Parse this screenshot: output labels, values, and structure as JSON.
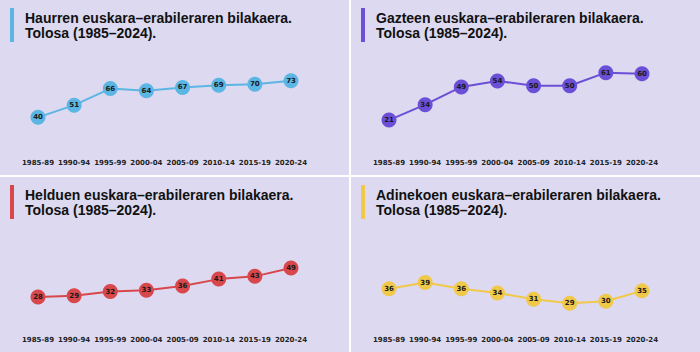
{
  "chart_data": [
    {
      "type": "line",
      "title": "Haurren euskara–erabileraren bilakaera.",
      "subtitle": "Tolosa (1985–2024).",
      "categories": [
        "1985-89",
        "1990-94",
        "1995-99",
        "2000-04",
        "2005-09",
        "2010-14",
        "2015-19",
        "2020-24"
      ],
      "values": [
        40,
        51,
        66,
        64,
        67,
        69,
        70,
        73
      ],
      "color": "#5cb6e4",
      "ylim": [
        15,
        90
      ],
      "grid": false,
      "tick_labels": "x",
      "data_labels": true,
      "marker": "circle"
    },
    {
      "type": "line",
      "title": "Gazteen euskara–erabileraren bilakaera.",
      "subtitle": "Tolosa (1985–2024).",
      "categories": [
        "1985-89",
        "1990-94",
        "1995-99",
        "2000-04",
        "2005-09",
        "2010-14",
        "2015-19",
        "2020-24"
      ],
      "values": [
        21,
        34,
        49,
        54,
        50,
        50,
        61,
        60
      ],
      "color": "#6b4fd6",
      "ylim": [
        0,
        70
      ],
      "grid": false,
      "tick_labels": "x",
      "data_labels": true,
      "marker": "circle"
    },
    {
      "type": "line",
      "title": "Helduen euskara–erabileraren bilakaera.",
      "subtitle": "Tolosa (1985–2024).",
      "categories": [
        "1985-89",
        "1990-94",
        "1995-99",
        "2000-04",
        "2005-09",
        "2010-14",
        "2015-19",
        "2020-24"
      ],
      "values": [
        28,
        29,
        32,
        33,
        36,
        41,
        43,
        49
      ],
      "color": "#d8474b",
      "ylim": [
        10,
        70
      ],
      "grid": false,
      "tick_labels": "x",
      "data_labels": true,
      "marker": "circle"
    },
    {
      "type": "line",
      "title": "Adinekoen euskara–erabileraren bilakaera.",
      "subtitle": "Tolosa (1985–2024).",
      "categories": [
        "1985-89",
        "1990-94",
        "1995-99",
        "2000-04",
        "2005-09",
        "2010-14",
        "2015-19",
        "2020-24"
      ],
      "values": [
        36,
        39,
        36,
        34,
        31,
        29,
        30,
        35
      ],
      "color": "#f0c94a",
      "ylim": [
        20,
        60
      ],
      "grid": false,
      "tick_labels": "x",
      "data_labels": true,
      "marker": "circle"
    }
  ]
}
